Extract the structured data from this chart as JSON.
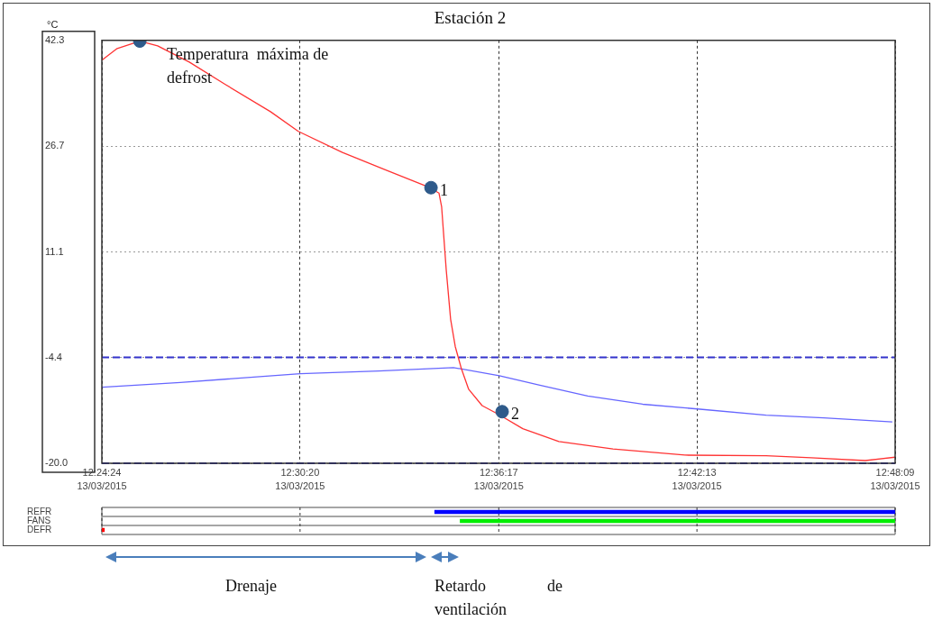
{
  "chart_data": [
    {
      "type": "line",
      "title": "Estación 2",
      "ylabel": "°C",
      "xlim": [
        12.40667,
        12.8025
      ],
      "xticks": [
        {
          "value": 12.40667,
          "label": "12:24:24"
        },
        {
          "value": 12.50556,
          "label": "12:30:20"
        },
        {
          "value": 12.60472,
          "label": "12:36:17"
        },
        {
          "value": 12.70361,
          "label": "12:42:13"
        },
        {
          "value": 12.8025,
          "label": "12:48:09"
        }
      ],
      "ylim": [
        -20,
        42.3
      ],
      "yticks": [
        {
          "value": -20,
          "label": "-20.0"
        },
        -4.4,
        11.1,
        26.7,
        42.3
      ],
      "grid": true,
      "legend": false,
      "series": [
        {
          "type": "line",
          "color": "#ff3333",
          "marker": "none",
          "x": [
            12.4067,
            12.4143,
            12.4256,
            12.4345,
            12.4503,
            12.4683,
            12.4908,
            12.5047,
            12.5267,
            12.5492,
            12.5695,
            12.5749,
            12.5762,
            12.5785,
            12.5807,
            12.583,
            12.5861,
            12.5897,
            12.5964,
            12.6046,
            12.6167,
            12.6347,
            12.6617,
            12.6976,
            12.7381,
            12.7606,
            12.7876,
            12.8025
          ],
          "values": [
            39.4,
            41.1,
            42.2,
            41.5,
            39.1,
            35.8,
            31.8,
            28.9,
            25.8,
            23.1,
            20.7,
            19.8,
            17.8,
            8.5,
            1.2,
            -2.8,
            -6.1,
            -9.1,
            -11.5,
            -12.8,
            -14.9,
            -16.8,
            -17.9,
            -18.8,
            -18.9,
            -19.2,
            -19.6,
            -19.1
          ]
        },
        {
          "type": "line",
          "color": "#6666ff",
          "marker": "none",
          "x": [
            12.4067,
            12.4458,
            12.5056,
            12.5447,
            12.5821,
            12.605,
            12.6252,
            12.6491,
            12.6765,
            12.7039,
            12.7381,
            12.7669,
            12.8011
          ],
          "values": [
            -8.8,
            -8.1,
            -6.8,
            -6.4,
            -5.9,
            -7.1,
            -8.5,
            -10.1,
            -11.3,
            -12.0,
            -12.9,
            -13.3,
            -13.9
          ]
        },
        {
          "type": "scatter",
          "color": "#2e5a8a",
          "marker": "circle",
          "x": [
            12.4256,
            12.5709,
            12.6064
          ],
          "values": [
            42.2,
            20.6,
            -12.4
          ]
        }
      ],
      "ref_lines": [
        {
          "axis": "y",
          "value": -4.4,
          "color": "#3333cc",
          "line_style": "dashed"
        },
        {
          "axis": "y",
          "value": -20,
          "color": "#3333cc",
          "line_style": "dashed"
        }
      ],
      "annotations": [
        {
          "text": "Temperatura  máxima de defrost",
          "x": 12.4256,
          "y": 42.2
        },
        {
          "text": "1",
          "x": 12.5709,
          "y": 20.6
        },
        {
          "text": "2",
          "x": 12.6064,
          "y": -12.4
        },
        "13/03/2015",
        "13/03/2015",
        "13/03/2015",
        "13/03/2015",
        "13/03/2015",
        "Drenaje",
        "Retardo de ventilación"
      ]
    },
    {
      "type": "bar",
      "orientation": "horizontal",
      "categories": [
        "REFR",
        "FANS",
        "DEFR"
      ],
      "base": [
        12.5726,
        12.5853,
        12.40667
      ],
      "values": [
        0.2299,
        0.2172,
        0.0014
      ],
      "colors": [
        "#0000ff",
        "#00ee00",
        "#ff0000"
      ],
      "xlim": [
        12.40667,
        12.8025
      ],
      "xticks": [
        {
          "value": 12.40667,
          "label": null
        },
        {
          "value": 12.50556,
          "label": null
        },
        {
          "value": 12.60472,
          "label": null
        },
        {
          "value": 12.70361,
          "label": null
        },
        {
          "value": 12.8025,
          "label": null
        }
      ],
      "tick_labels": "y",
      "grid": "x"
    }
  ]
}
